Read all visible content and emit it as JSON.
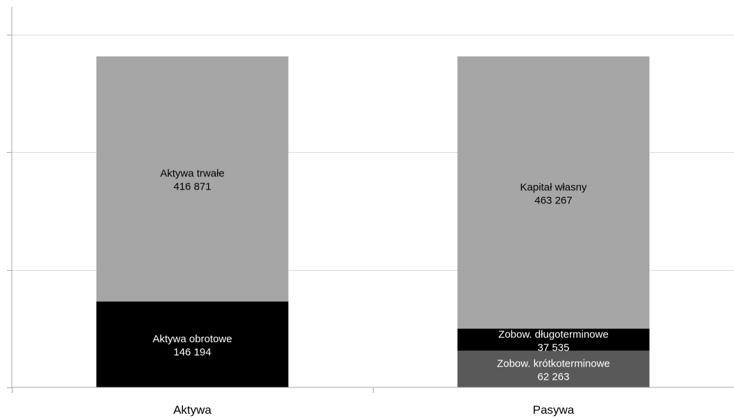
{
  "chart_data": {
    "type": "bar",
    "stacked": true,
    "categories": [
      "Aktywa",
      "Pasywa"
    ],
    "ylim": [
      0,
      600000
    ],
    "grid": true,
    "series": [
      {
        "name": "Aktywa obrotowe",
        "category": "Aktywa",
        "value": 146194,
        "label": "Aktywa obrotowe",
        "value_label": "146 194",
        "color": "#000000",
        "text_color": "#ffffff"
      },
      {
        "name": "Aktywa trwałe",
        "category": "Aktywa",
        "value": 416871,
        "label": "Aktywa trwałe",
        "value_label": "416 871",
        "color": "#a6a6a6",
        "text_color": "#000000"
      },
      {
        "name": "Zobow. krótkoterminowe",
        "category": "Pasywa",
        "value": 62263,
        "label": "Zobow. krótkoterminowe",
        "value_label": "62 263",
        "color": "#595959",
        "text_color": "#ffffff"
      },
      {
        "name": "Zobow. długoterminowe",
        "category": "Pasywa",
        "value": 37535,
        "label": "Zobow. długoterminowe",
        "value_label": "37 535",
        "color": "#000000",
        "text_color": "#ffffff"
      },
      {
        "name": "Kapitał własny",
        "category": "Pasywa",
        "value": 463267,
        "label": "Kapitał własny",
        "value_label": "463 267",
        "color": "#a6a6a6",
        "text_color": "#000000"
      }
    ]
  }
}
